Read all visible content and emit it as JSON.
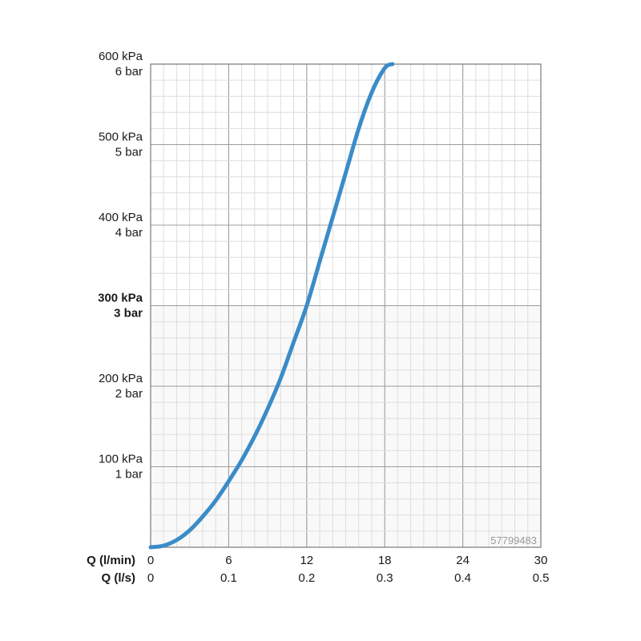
{
  "chart_data": {
    "type": "line",
    "x_axis_rows": [
      {
        "title": "Q (l/min)",
        "ticks": [
          "0",
          "6",
          "12",
          "18",
          "24",
          "30"
        ]
      },
      {
        "title": "Q (l/s)",
        "ticks": [
          "0",
          "0.1",
          "0.2",
          "0.3",
          "0.4",
          "0.5"
        ]
      }
    ],
    "xlim": [
      0,
      30
    ],
    "ylim": [
      0,
      600
    ],
    "y_ticks": [
      {
        "value": 100,
        "kpa": "100 kPa",
        "bar": "1 bar",
        "bold": false
      },
      {
        "value": 200,
        "kpa": "200 kPa",
        "bar": "2 bar",
        "bold": false
      },
      {
        "value": 300,
        "kpa": "300 kPa",
        "bar": "3 bar",
        "bold": true
      },
      {
        "value": 400,
        "kpa": "400 kPa",
        "bar": "4 bar",
        "bold": false
      },
      {
        "value": 500,
        "kpa": "500 kPa",
        "bar": "5 bar",
        "bold": false
      },
      {
        "value": 600,
        "kpa": "600 kPa",
        "bar": "6 bar",
        "bold": false
      }
    ],
    "grid": true,
    "series": [
      {
        "color": "#3a8cc8",
        "x": [
          0,
          1,
          2,
          3,
          4,
          5,
          6,
          7,
          8,
          9,
          10,
          11,
          12,
          13,
          14,
          15,
          16,
          17,
          18,
          18.6
        ],
        "y": [
          0,
          2,
          9,
          21,
          38,
          58,
          82,
          108,
          138,
          172,
          210,
          255,
          300,
          355,
          410,
          465,
          520,
          565,
          595,
          600
        ]
      }
    ],
    "watermark": "57799483"
  }
}
